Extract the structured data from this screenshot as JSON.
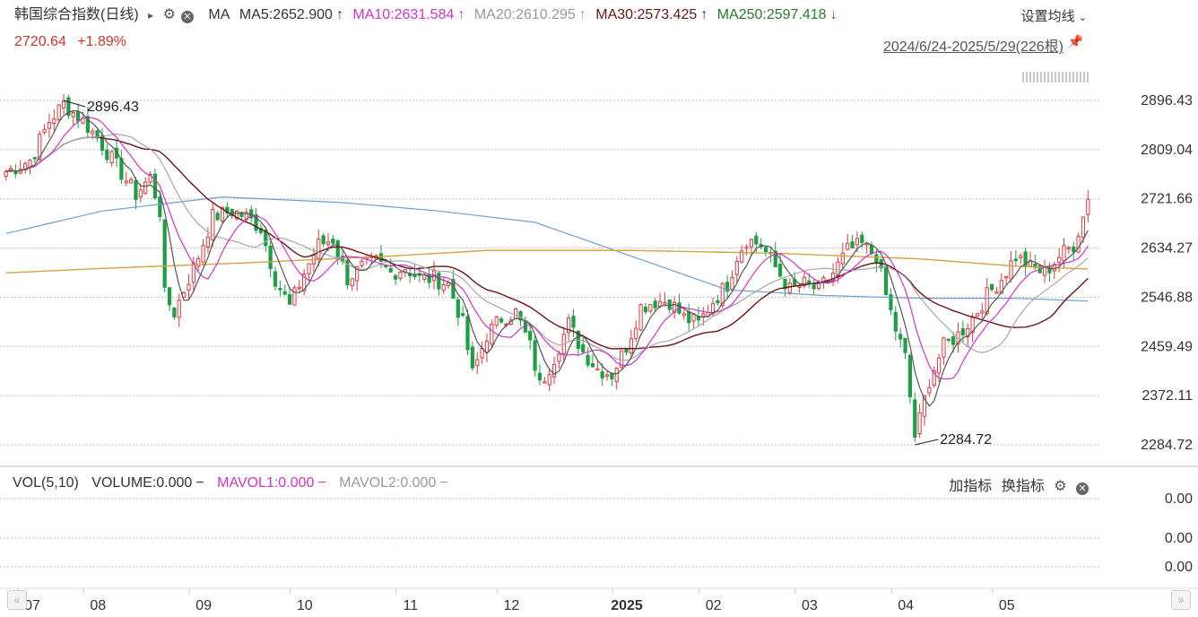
{
  "header": {
    "title": "韩国综合指数(日线)",
    "arrow": "▸",
    "indicator": "MA",
    "ma5": "MA5:2652.900",
    "ma5_arrow": "↑",
    "ma10": "MA10:2631.584",
    "ma10_arrow": "↑",
    "ma20": "MA20:2610.295",
    "ma20_arrow": "↑",
    "ma30": "MA30:2573.425",
    "ma30_arrow": "↑",
    "ma250": "MA250:2597.418",
    "ma250_arrow": "↓",
    "settings": "设置均线",
    "price": "2720.64",
    "change": "+1.89%",
    "range": "2024/6/24-2025/5/29(226根)"
  },
  "volume_panel": {
    "label": "VOL(5,10)",
    "volume": "VOLUME:0.000",
    "mavol1": "MAVOL1:0.000",
    "mavol2": "MAVOL2:0.000",
    "dash": "−",
    "add_indicator": "加指标",
    "switch_indicator": "换指标",
    "axis_labels": [
      "0.00",
      "0.00",
      "0.00"
    ]
  },
  "colors": {
    "up": "#e0393e",
    "down": "#1e9e45",
    "ma5": "#555555",
    "ma10": "#d233c8",
    "ma20": "#a8a8a8",
    "ma30": "#6b1414",
    "ma250": "#d6a23f",
    "ma_long": "#6f9fd0"
  },
  "chart_data": {
    "type": "candlestick",
    "y_ticks": [
      2896.43,
      2809.04,
      2721.66,
      2634.27,
      2546.88,
      2459.49,
      2372.11,
      2284.72
    ],
    "ylim": [
      2284.72,
      2896.43
    ],
    "x_labels": [
      "07",
      "08",
      "09",
      "10",
      "11",
      "12",
      "2025",
      "02",
      "03",
      "04",
      "05"
    ],
    "annotations": [
      {
        "label": "2896.43",
        "type": "high"
      },
      {
        "label": "2284.72",
        "type": "low"
      }
    ],
    "last_close": 2720.64,
    "change_pct": 1.89,
    "bars": 226,
    "close_path": [
      [
        0,
        2770
      ],
      [
        5,
        2790
      ],
      [
        9,
        2860
      ],
      [
        12,
        2890
      ],
      [
        16,
        2860
      ],
      [
        19,
        2830
      ],
      [
        23,
        2780
      ],
      [
        27,
        2730
      ],
      [
        30,
        2760
      ],
      [
        32,
        2700
      ],
      [
        33,
        2550
      ],
      [
        35,
        2520
      ],
      [
        37,
        2560
      ],
      [
        40,
        2620
      ],
      [
        43,
        2690
      ],
      [
        47,
        2700
      ],
      [
        50,
        2690
      ],
      [
        53,
        2670
      ],
      [
        56,
        2580
      ],
      [
        59,
        2530
      ],
      [
        62,
        2590
      ],
      [
        65,
        2640
      ],
      [
        68,
        2650
      ],
      [
        71,
        2580
      ],
      [
        74,
        2600
      ],
      [
        77,
        2610
      ],
      [
        80,
        2590
      ],
      [
        83,
        2600
      ],
      [
        86,
        2580
      ],
      [
        89,
        2580
      ],
      [
        92,
        2570
      ],
      [
        95,
        2500
      ],
      [
        97,
        2410
      ],
      [
        100,
        2480
      ],
      [
        103,
        2510
      ],
      [
        106,
        2520
      ],
      [
        109,
        2460
      ],
      [
        111,
        2390
      ],
      [
        114,
        2440
      ],
      [
        117,
        2500
      ],
      [
        120,
        2450
      ],
      [
        123,
        2420
      ],
      [
        126,
        2410
      ],
      [
        129,
        2460
      ],
      [
        132,
        2530
      ],
      [
        135,
        2540
      ],
      [
        138,
        2540
      ],
      [
        141,
        2510
      ],
      [
        144,
        2500
      ],
      [
        147,
        2540
      ],
      [
        150,
        2570
      ],
      [
        152,
        2620
      ],
      [
        154,
        2650
      ],
      [
        157,
        2640
      ],
      [
        160,
        2600
      ],
      [
        163,
        2560
      ],
      [
        166,
        2570
      ],
      [
        169,
        2560
      ],
      [
        172,
        2590
      ],
      [
        175,
        2630
      ],
      [
        178,
        2640
      ],
      [
        181,
        2620
      ],
      [
        183,
        2550
      ],
      [
        185,
        2490
      ],
      [
        187,
        2440
      ],
      [
        189,
        2300
      ],
      [
        190,
        2330
      ],
      [
        192,
        2400
      ],
      [
        195,
        2460
      ],
      [
        198,
        2480
      ],
      [
        201,
        2510
      ],
      [
        204,
        2550
      ],
      [
        207,
        2580
      ],
      [
        210,
        2620
      ],
      [
        213,
        2600
      ],
      [
        216,
        2590
      ],
      [
        219,
        2620
      ],
      [
        222,
        2640
      ],
      [
        224,
        2690
      ],
      [
        225,
        2720.64
      ]
    ],
    "ma_lines": [
      {
        "name": "MA5",
        "value": 2652.9
      },
      {
        "name": "MA10",
        "value": 2631.584
      },
      {
        "name": "MA20",
        "value": 2610.295
      },
      {
        "name": "MA30",
        "value": 2573.425
      },
      {
        "name": "MA250",
        "value": 2597.418
      }
    ],
    "ma250_path": [
      [
        0,
        2590
      ],
      [
        20,
        2598
      ],
      [
        50,
        2608
      ],
      [
        80,
        2620
      ],
      [
        100,
        2630
      ],
      [
        130,
        2630
      ],
      [
        160,
        2625
      ],
      [
        190,
        2615
      ],
      [
        210,
        2602
      ],
      [
        225,
        2597
      ]
    ],
    "long_ma_path": [
      [
        0,
        2660
      ],
      [
        20,
        2700
      ],
      [
        45,
        2725
      ],
      [
        70,
        2715
      ],
      [
        90,
        2700
      ],
      [
        110,
        2680
      ],
      [
        130,
        2620
      ],
      [
        150,
        2560
      ],
      [
        170,
        2550
      ],
      [
        190,
        2545
      ],
      [
        210,
        2545
      ],
      [
        225,
        2540
      ]
    ]
  }
}
